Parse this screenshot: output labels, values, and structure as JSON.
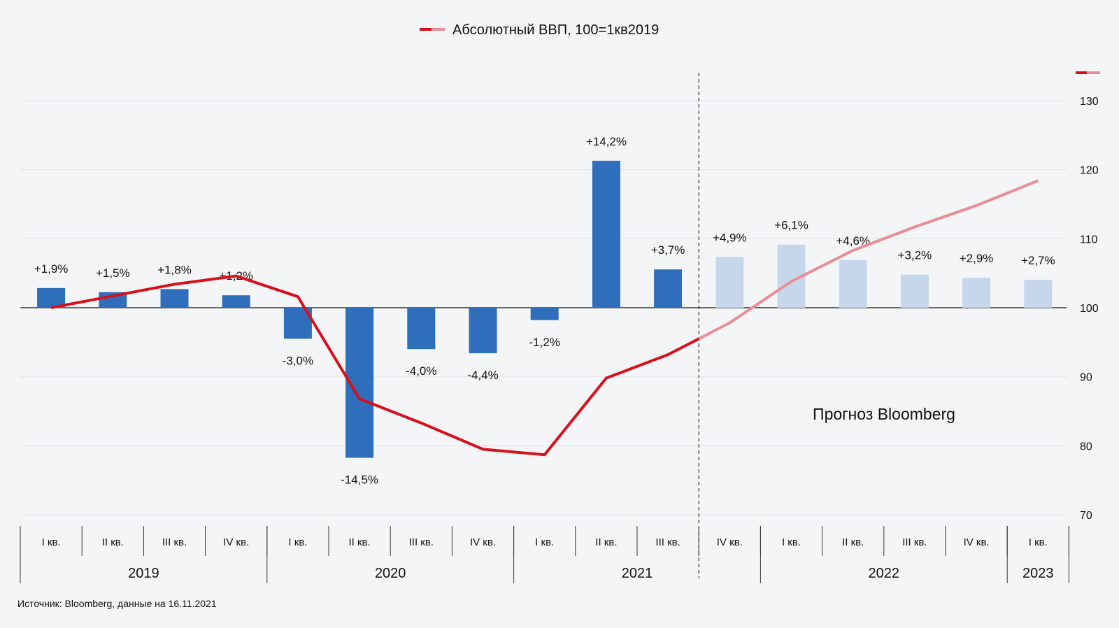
{
  "chart_data": {
    "type": "bar",
    "legend": {
      "label": "Абсолютный ВВП, 100=1кв2019",
      "colors": [
        "#d6101c",
        "#e88e97"
      ]
    },
    "categories": [
      "I кв.",
      "II кв.",
      "III кв.",
      "IV кв.",
      "I кв.",
      "II кв.",
      "III кв.",
      "IV кв.",
      "I кв.",
      "II кв.",
      "III кв.",
      "IV кв.",
      "I кв.",
      "II кв.",
      "III кв.",
      "IV кв.",
      "I кв."
    ],
    "years": [
      {
        "label": "2019",
        "start": 0,
        "end": 3
      },
      {
        "label": "2020",
        "start": 4,
        "end": 7
      },
      {
        "label": "2021",
        "start": 8,
        "end": 11
      },
      {
        "label": "2022",
        "start": 12,
        "end": 15
      },
      {
        "label": "2023",
        "start": 16,
        "end": 16
      }
    ],
    "series": [
      {
        "type": "bar",
        "values": [
          1.9,
          1.5,
          1.8,
          1.2,
          -3.0,
          -14.5,
          -4.0,
          -4.4,
          -1.2,
          14.2,
          3.7,
          4.9,
          6.1,
          4.6,
          3.2,
          2.9,
          2.7
        ],
        "labels": [
          "+1,9%",
          "+1,5%",
          "+1,8%",
          "+1,2%",
          "-3,0%",
          "-14,5%",
          "-4,0%",
          "-4,4%",
          "-1,2%",
          "+14,2%",
          "+3,7%",
          "+4,9%",
          "+6,1%",
          "+4,6%",
          "+3,2%",
          "+2,9%",
          "+2,7%"
        ],
        "forecast_from_index": 11,
        "colors": {
          "actual": "#2f6ebb",
          "forecast": "#c6d7ec"
        }
      },
      {
        "name": "Абсолютный ВВП, 100=1кв2019",
        "type": "line",
        "values": [
          100.0,
          101.7,
          103.4,
          104.6,
          101.6,
          86.8,
          83.3,
          79.5,
          78.7,
          89.8,
          93.2,
          97.8,
          103.8,
          108.3,
          111.7,
          114.8,
          118.4
        ],
        "colors": {
          "actual": "#d6101c",
          "forecast": "#e88e97"
        }
      }
    ],
    "y_axis": {
      "ticks": [
        70,
        80,
        90,
        100,
        110,
        120,
        130
      ],
      "position": "right",
      "range": [
        70,
        133
      ]
    },
    "annotation": "Прогноз Bloomberg",
    "grid": true
  },
  "source": "Источник: Bloomberg, данные на 16.11.2021"
}
